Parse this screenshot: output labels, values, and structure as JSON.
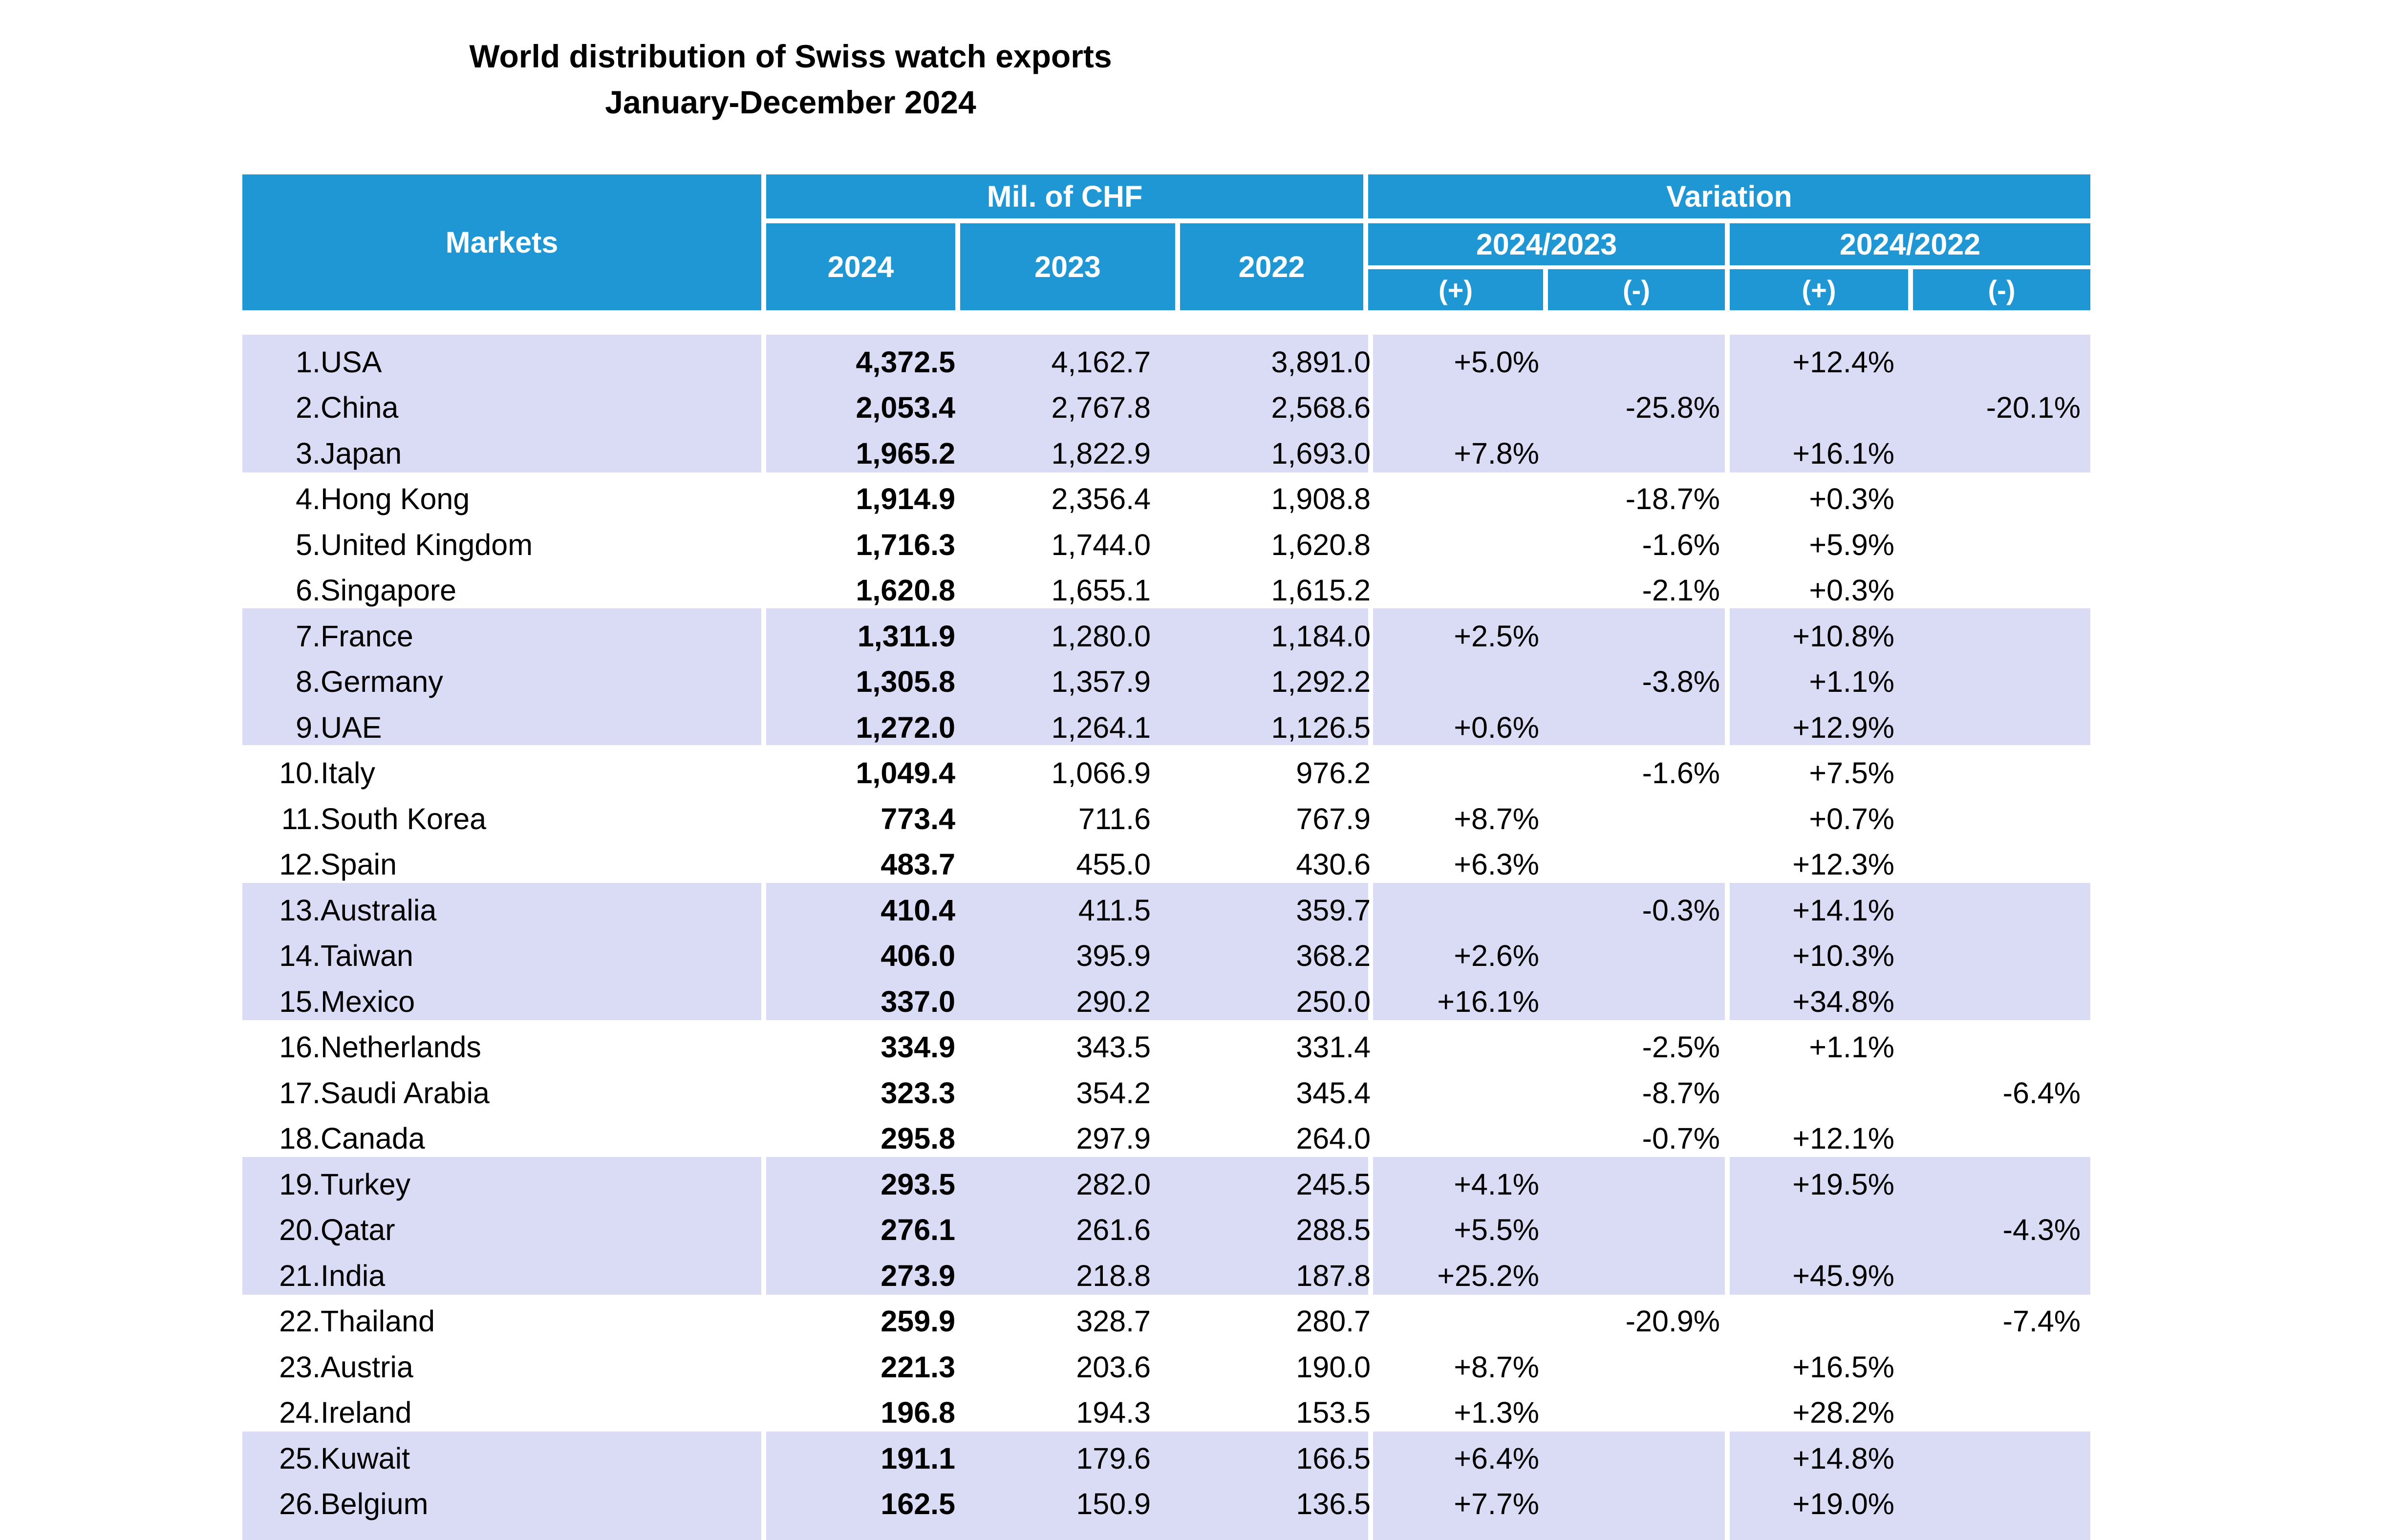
{
  "title": {
    "line1": "World distribution of Swiss watch exports",
    "line2": "January-December 2024"
  },
  "header": {
    "markets": "Markets",
    "mil_chf": "Mil. of CHF",
    "variation": "Variation",
    "years": [
      "2024",
      "2023",
      "2022"
    ],
    "periods": [
      "2024/2023",
      "2024/2022"
    ],
    "plus": "(+)",
    "minus": "(-)"
  },
  "colors": {
    "header_bg": "#1E97D4",
    "band_bg": "#D9DCF4"
  },
  "rows": [
    {
      "rank": "1.",
      "market": "USA",
      "v2024": "4,372.5",
      "v2023": "4,162.7",
      "v2022": "3,891.0",
      "var23_plus": "+5.0%",
      "var23_minus": "",
      "var22_plus": "+12.4%",
      "var22_minus": ""
    },
    {
      "rank": "2.",
      "market": "China",
      "v2024": "2,053.4",
      "v2023": "2,767.8",
      "v2022": "2,568.6",
      "var23_plus": "",
      "var23_minus": "-25.8%",
      "var22_plus": "",
      "var22_minus": "-20.1%"
    },
    {
      "rank": "3.",
      "market": "Japan",
      "v2024": "1,965.2",
      "v2023": "1,822.9",
      "v2022": "1,693.0",
      "var23_plus": "+7.8%",
      "var23_minus": "",
      "var22_plus": "+16.1%",
      "var22_minus": ""
    },
    {
      "rank": "4.",
      "market": "Hong Kong",
      "v2024": "1,914.9",
      "v2023": "2,356.4",
      "v2022": "1,908.8",
      "var23_plus": "",
      "var23_minus": "-18.7%",
      "var22_plus": "+0.3%",
      "var22_minus": ""
    },
    {
      "rank": "5.",
      "market": "United Kingdom",
      "v2024": "1,716.3",
      "v2023": "1,744.0",
      "v2022": "1,620.8",
      "var23_plus": "",
      "var23_minus": "-1.6%",
      "var22_plus": "+5.9%",
      "var22_minus": ""
    },
    {
      "rank": "6.",
      "market": "Singapore",
      "v2024": "1,620.8",
      "v2023": "1,655.1",
      "v2022": "1,615.2",
      "var23_plus": "",
      "var23_minus": "-2.1%",
      "var22_plus": "+0.3%",
      "var22_minus": ""
    },
    {
      "rank": "7.",
      "market": "France",
      "v2024": "1,311.9",
      "v2023": "1,280.0",
      "v2022": "1,184.0",
      "var23_plus": "+2.5%",
      "var23_minus": "",
      "var22_plus": "+10.8%",
      "var22_minus": ""
    },
    {
      "rank": "8.",
      "market": "Germany",
      "v2024": "1,305.8",
      "v2023": "1,357.9",
      "v2022": "1,292.2",
      "var23_plus": "",
      "var23_minus": "-3.8%",
      "var22_plus": "+1.1%",
      "var22_minus": ""
    },
    {
      "rank": "9.",
      "market": "UAE",
      "v2024": "1,272.0",
      "v2023": "1,264.1",
      "v2022": "1,126.5",
      "var23_plus": "+0.6%",
      "var23_minus": "",
      "var22_plus": "+12.9%",
      "var22_minus": ""
    },
    {
      "rank": "10.",
      "market": "Italy",
      "v2024": "1,049.4",
      "v2023": "1,066.9",
      "v2022": "976.2",
      "var23_plus": "",
      "var23_minus": "-1.6%",
      "var22_plus": "+7.5%",
      "var22_minus": ""
    },
    {
      "rank": "11.",
      "market": "South Korea",
      "v2024": "773.4",
      "v2023": "711.6",
      "v2022": "767.9",
      "var23_plus": "+8.7%",
      "var23_minus": "",
      "var22_plus": "+0.7%",
      "var22_minus": ""
    },
    {
      "rank": "12.",
      "market": "Spain",
      "v2024": "483.7",
      "v2023": "455.0",
      "v2022": "430.6",
      "var23_plus": "+6.3%",
      "var23_minus": "",
      "var22_plus": "+12.3%",
      "var22_minus": ""
    },
    {
      "rank": "13.",
      "market": "Australia",
      "v2024": "410.4",
      "v2023": "411.5",
      "v2022": "359.7",
      "var23_plus": "",
      "var23_minus": "-0.3%",
      "var22_plus": "+14.1%",
      "var22_minus": ""
    },
    {
      "rank": "14.",
      "market": "Taiwan",
      "v2024": "406.0",
      "v2023": "395.9",
      "v2022": "368.2",
      "var23_plus": "+2.6%",
      "var23_minus": "",
      "var22_plus": "+10.3%",
      "var22_minus": ""
    },
    {
      "rank": "15.",
      "market": "Mexico",
      "v2024": "337.0",
      "v2023": "290.2",
      "v2022": "250.0",
      "var23_plus": "+16.1%",
      "var23_minus": "",
      "var22_plus": "+34.8%",
      "var22_minus": ""
    },
    {
      "rank": "16.",
      "market": "Netherlands",
      "v2024": "334.9",
      "v2023": "343.5",
      "v2022": "331.4",
      "var23_plus": "",
      "var23_minus": "-2.5%",
      "var22_plus": "+1.1%",
      "var22_minus": ""
    },
    {
      "rank": "17.",
      "market": "Saudi Arabia",
      "v2024": "323.3",
      "v2023": "354.2",
      "v2022": "345.4",
      "var23_plus": "",
      "var23_minus": "-8.7%",
      "var22_plus": "",
      "var22_minus": "-6.4%"
    },
    {
      "rank": "18.",
      "market": "Canada",
      "v2024": "295.8",
      "v2023": "297.9",
      "v2022": "264.0",
      "var23_plus": "",
      "var23_minus": "-0.7%",
      "var22_plus": "+12.1%",
      "var22_minus": ""
    },
    {
      "rank": "19.",
      "market": "Turkey",
      "v2024": "293.5",
      "v2023": "282.0",
      "v2022": "245.5",
      "var23_plus": "+4.1%",
      "var23_minus": "",
      "var22_plus": "+19.5%",
      "var22_minus": ""
    },
    {
      "rank": "20.",
      "market": "Qatar",
      "v2024": "276.1",
      "v2023": "261.6",
      "v2022": "288.5",
      "var23_plus": "+5.5%",
      "var23_minus": "",
      "var22_plus": "",
      "var22_minus": "-4.3%"
    },
    {
      "rank": "21.",
      "market": "India",
      "v2024": "273.9",
      "v2023": "218.8",
      "v2022": "187.8",
      "var23_plus": "+25.2%",
      "var23_minus": "",
      "var22_plus": "+45.9%",
      "var22_minus": ""
    },
    {
      "rank": "22.",
      "market": "Thailand",
      "v2024": "259.9",
      "v2023": "328.7",
      "v2022": "280.7",
      "var23_plus": "",
      "var23_minus": "-20.9%",
      "var22_plus": "",
      "var22_minus": "-7.4%"
    },
    {
      "rank": "23.",
      "market": "Austria",
      "v2024": "221.3",
      "v2023": "203.6",
      "v2022": "190.0",
      "var23_plus": "+8.7%",
      "var23_minus": "",
      "var22_plus": "+16.5%",
      "var22_minus": ""
    },
    {
      "rank": "24.",
      "market": "Ireland",
      "v2024": "196.8",
      "v2023": "194.3",
      "v2022": "153.5",
      "var23_plus": "+1.3%",
      "var23_minus": "",
      "var22_plus": "+28.2%",
      "var22_minus": ""
    },
    {
      "rank": "25.",
      "market": "Kuwait",
      "v2024": "191.1",
      "v2023": "179.6",
      "v2022": "166.5",
      "var23_plus": "+6.4%",
      "var23_minus": "",
      "var22_plus": "+14.8%",
      "var22_minus": ""
    },
    {
      "rank": "26.",
      "market": "Belgium",
      "v2024": "162.5",
      "v2023": "150.9",
      "v2022": "136.5",
      "var23_plus": "+7.7%",
      "var23_minus": "",
      "var22_plus": "+19.0%",
      "var22_minus": ""
    }
  ]
}
